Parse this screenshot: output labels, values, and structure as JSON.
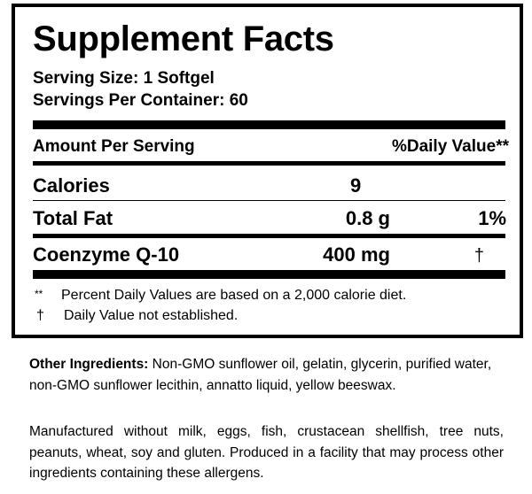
{
  "label": {
    "title": "Supplement Facts",
    "serving_size": "Serving Size: 1 Softgel",
    "servings_per_container": "Servings Per Container: 60",
    "header": {
      "amount": "Amount Per Serving",
      "daily_value": "%Daily Value**"
    },
    "rows": [
      {
        "name": "Calories",
        "amount": "9",
        "dv": ""
      },
      {
        "name": "Total Fat",
        "amount": "0.8 g",
        "dv": "1%"
      },
      {
        "name": "Coenzyme Q-10",
        "amount": "400 mg",
        "dv": "†"
      }
    ],
    "footnotes": [
      {
        "symbol": "**",
        "text": "Percent Daily Values are based on a 2,000 calorie diet."
      },
      {
        "symbol": "†",
        "text": "Daily Value not established."
      }
    ]
  },
  "other_ingredients": {
    "label": "Other Ingredients:",
    "text": " Non-GMO sunflower oil, gelatin, glycerin, purified water, non-GMO sunflower lecithin, annatto liquid, yellow beeswax."
  },
  "allergen_statement": "Manufactured without milk, eggs, fish, crustacean shellfish, tree nuts, peanuts, wheat, soy and gluten. Produced in a facility that may process other ingredients containing these allergens."
}
